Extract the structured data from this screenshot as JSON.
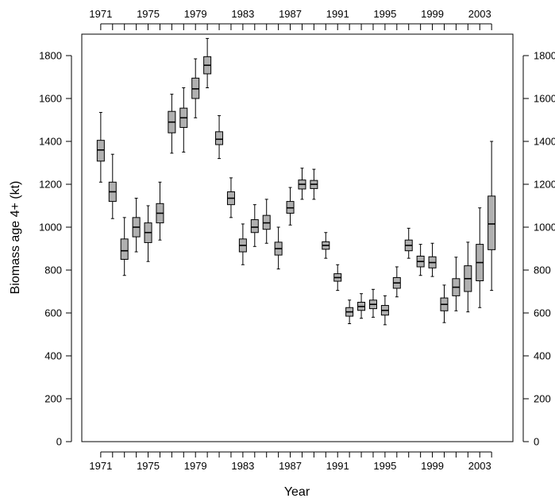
{
  "chart_data": {
    "type": "box",
    "title": "",
    "xlabel": "Year",
    "ylabel": "Biomass age 4+ (kt)",
    "ylim": [
      0,
      1900
    ],
    "xlim": [
      1969.4,
      2005.8
    ],
    "grid": false,
    "y_ticks": [
      0,
      200,
      400,
      600,
      800,
      1000,
      1200,
      1400,
      1600,
      1800
    ],
    "x_tick_labels": [
      "1971",
      "1975",
      "1979",
      "1983",
      "1987",
      "1991",
      "1995",
      "1999",
      "2003"
    ],
    "box_color": "#b0b0b0",
    "boxes": [
      {
        "year": 1971,
        "whisker_low": 1210,
        "q1": 1308,
        "median": 1360,
        "q3": 1405,
        "whisker_high": 1535
      },
      {
        "year": 1972,
        "whisker_low": 1040,
        "q1": 1120,
        "median": 1165,
        "q3": 1210,
        "whisker_high": 1340
      },
      {
        "year": 1973,
        "whisker_low": 775,
        "q1": 850,
        "median": 890,
        "q3": 945,
        "whisker_high": 1045
      },
      {
        "year": 1974,
        "whisker_low": 885,
        "q1": 955,
        "median": 1000,
        "q3": 1045,
        "whisker_high": 1135
      },
      {
        "year": 1975,
        "whisker_low": 840,
        "q1": 928,
        "median": 975,
        "q3": 1020,
        "whisker_high": 1100
      },
      {
        "year": 1976,
        "whisker_low": 940,
        "q1": 1020,
        "median": 1065,
        "q3": 1110,
        "whisker_high": 1210
      },
      {
        "year": 1977,
        "whisker_low": 1345,
        "q1": 1440,
        "median": 1490,
        "q3": 1540,
        "whisker_high": 1620
      },
      {
        "year": 1978,
        "whisker_low": 1350,
        "q1": 1465,
        "median": 1510,
        "q3": 1555,
        "whisker_high": 1650
      },
      {
        "year": 1979,
        "whisker_low": 1510,
        "q1": 1600,
        "median": 1645,
        "q3": 1695,
        "whisker_high": 1785
      },
      {
        "year": 1980,
        "whisker_low": 1650,
        "q1": 1715,
        "median": 1755,
        "q3": 1795,
        "whisker_high": 1880
      },
      {
        "year": 1981,
        "whisker_low": 1320,
        "q1": 1385,
        "median": 1410,
        "q3": 1445,
        "whisker_high": 1520
      },
      {
        "year": 1982,
        "whisker_low": 1045,
        "q1": 1105,
        "median": 1135,
        "q3": 1165,
        "whisker_high": 1230
      },
      {
        "year": 1983,
        "whisker_low": 825,
        "q1": 885,
        "median": 915,
        "q3": 945,
        "whisker_high": 1015
      },
      {
        "year": 1984,
        "whisker_low": 910,
        "q1": 975,
        "median": 1000,
        "q3": 1035,
        "whisker_high": 1105
      },
      {
        "year": 1985,
        "whisker_low": 925,
        "q1": 990,
        "median": 1020,
        "q3": 1055,
        "whisker_high": 1130
      },
      {
        "year": 1986,
        "whisker_low": 805,
        "q1": 870,
        "median": 900,
        "q3": 930,
        "whisker_high": 1000
      },
      {
        "year": 1987,
        "whisker_low": 1010,
        "q1": 1065,
        "median": 1090,
        "q3": 1120,
        "whisker_high": 1185
      },
      {
        "year": 1988,
        "whisker_low": 1130,
        "q1": 1178,
        "median": 1200,
        "q3": 1220,
        "whisker_high": 1275
      },
      {
        "year": 1989,
        "whisker_low": 1130,
        "q1": 1180,
        "median": 1200,
        "q3": 1218,
        "whisker_high": 1270
      },
      {
        "year": 1990,
        "whisker_low": 855,
        "q1": 897,
        "median": 915,
        "q3": 932,
        "whisker_high": 975
      },
      {
        "year": 1991,
        "whisker_low": 705,
        "q1": 748,
        "median": 765,
        "q3": 783,
        "whisker_high": 825
      },
      {
        "year": 1992,
        "whisker_low": 550,
        "q1": 585,
        "median": 605,
        "q3": 625,
        "whisker_high": 660
      },
      {
        "year": 1993,
        "whisker_low": 575,
        "q1": 612,
        "median": 630,
        "q3": 650,
        "whisker_high": 690
      },
      {
        "year": 1994,
        "whisker_low": 580,
        "q1": 620,
        "median": 640,
        "q3": 660,
        "whisker_high": 710
      },
      {
        "year": 1995,
        "whisker_low": 545,
        "q1": 590,
        "median": 612,
        "q3": 635,
        "whisker_high": 680
      },
      {
        "year": 1996,
        "whisker_low": 675,
        "q1": 715,
        "median": 740,
        "q3": 765,
        "whisker_high": 815
      },
      {
        "year": 1997,
        "whisker_low": 855,
        "q1": 890,
        "median": 915,
        "q3": 940,
        "whisker_high": 995
      },
      {
        "year": 1998,
        "whisker_low": 775,
        "q1": 815,
        "median": 840,
        "q3": 865,
        "whisker_high": 920
      },
      {
        "year": 1999,
        "whisker_low": 770,
        "q1": 810,
        "median": 835,
        "q3": 862,
        "whisker_high": 925
      },
      {
        "year": 2000,
        "whisker_low": 555,
        "q1": 610,
        "median": 640,
        "q3": 670,
        "whisker_high": 730
      },
      {
        "year": 2001,
        "whisker_low": 610,
        "q1": 680,
        "median": 720,
        "q3": 760,
        "whisker_high": 860
      },
      {
        "year": 2002,
        "whisker_low": 605,
        "q1": 700,
        "median": 760,
        "q3": 820,
        "whisker_high": 930
      },
      {
        "year": 2003,
        "whisker_low": 625,
        "q1": 750,
        "median": 835,
        "q3": 920,
        "whisker_high": 1090
      },
      {
        "year": 2004,
        "whisker_low": 705,
        "q1": 895,
        "median": 1015,
        "q3": 1145,
        "whisker_high": 1400
      }
    ]
  }
}
